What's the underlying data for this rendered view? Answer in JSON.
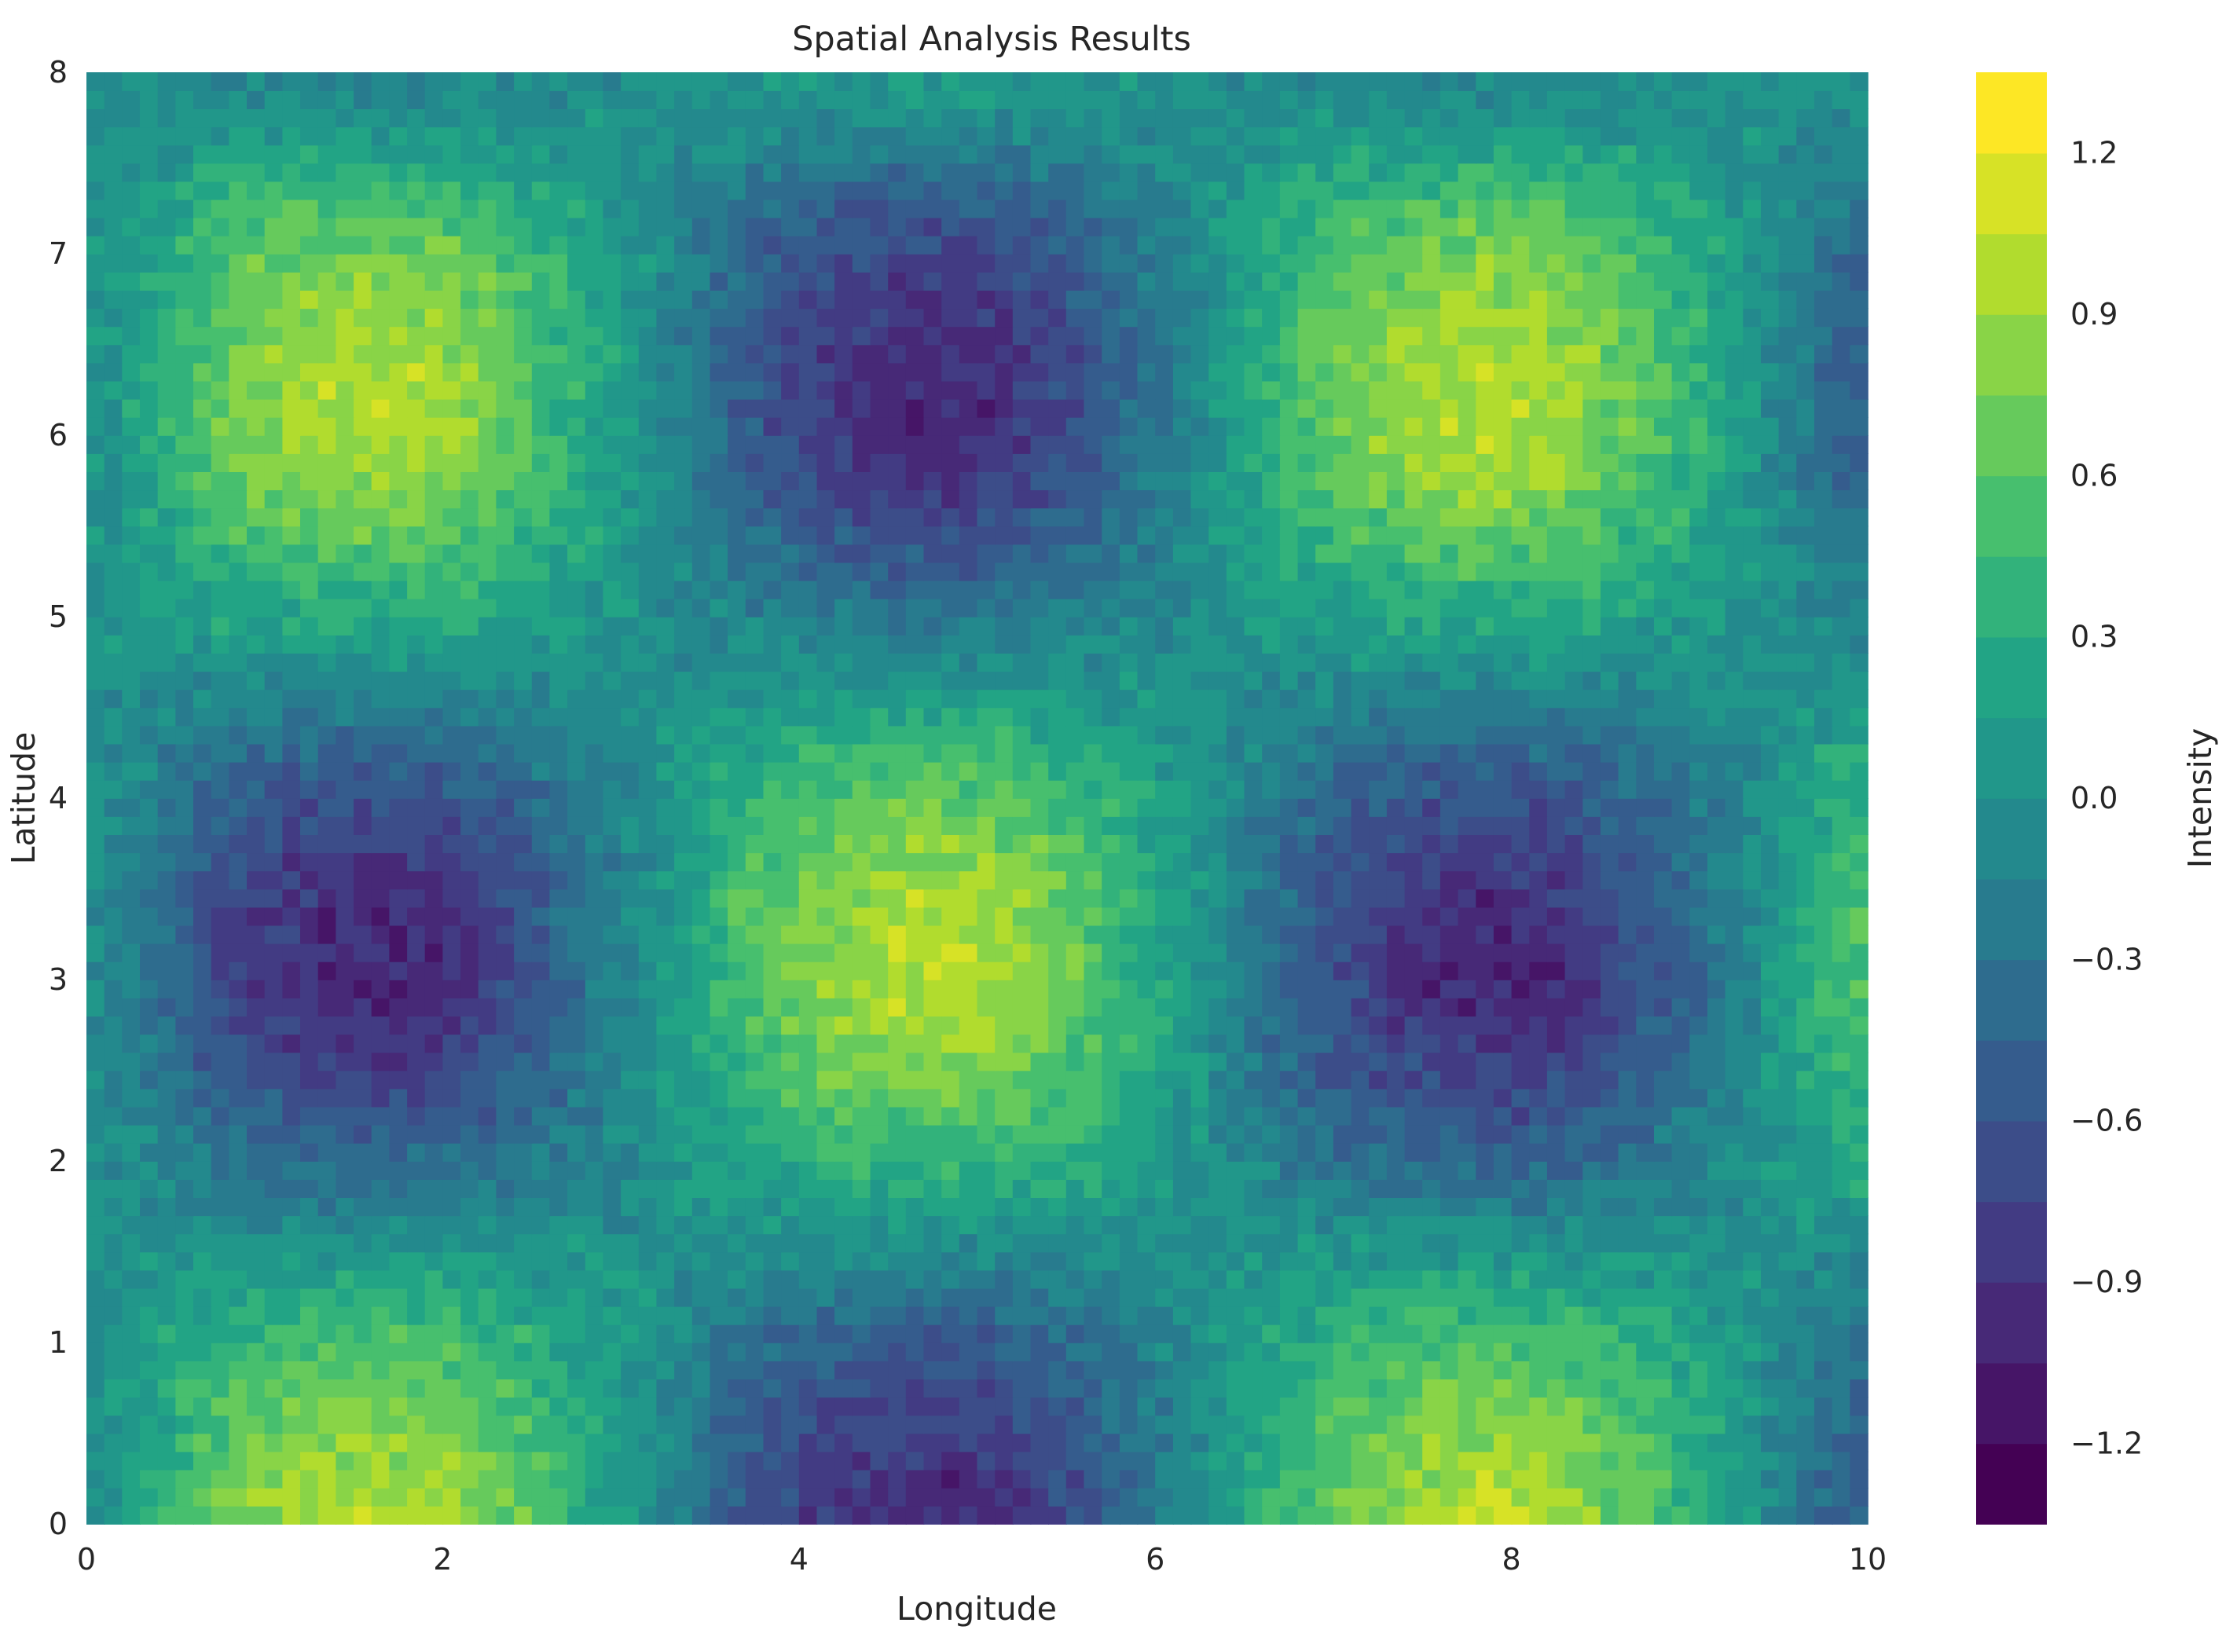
{
  "chart_data": {
    "type": "heatmap",
    "subtype": "filled-contour",
    "title": "Spatial Analysis Results",
    "xlabel": "Longitude",
    "ylabel": "Latitude",
    "xlim": [
      0,
      10
    ],
    "ylim": [
      0,
      8
    ],
    "xticks": [
      "0",
      "2",
      "4",
      "6",
      "8",
      "10"
    ],
    "yticks": [
      "0",
      "1",
      "2",
      "3",
      "4",
      "5",
      "6",
      "7",
      "8"
    ],
    "colormap": "viridis",
    "grid": false,
    "colorbar": {
      "label": "Intensity",
      "range": [
        -1.35,
        1.35
      ],
      "level_step": 0.15,
      "ticks": [
        "−1.2",
        "−0.9",
        "−0.6",
        "−0.3",
        "0.0",
        "0.3",
        "0.6",
        "0.9",
        "1.2"
      ],
      "tick_values": [
        -1.2,
        -0.9,
        -0.6,
        -0.3,
        0.0,
        0.3,
        0.6,
        0.9,
        1.2
      ]
    },
    "grid_x": [
      0,
      1,
      2,
      3,
      4,
      5,
      6,
      7,
      8,
      9,
      10
    ],
    "grid_y": [
      0,
      1,
      2,
      3,
      4,
      5,
      6,
      7,
      8
    ],
    "z": [
      [
        0,
        0.84,
        0.91,
        0.14,
        -0.76,
        -0.96,
        -0.28,
        0.66,
        0.99,
        0.41,
        -0.54
      ],
      [
        0,
        0.45,
        0.49,
        0.08,
        -0.41,
        -0.52,
        -0.15,
        0.36,
        0.53,
        0.22,
        -0.29
      ],
      [
        0,
        -0.35,
        -0.38,
        -0.06,
        0.32,
        0.4,
        0.12,
        -0.28,
        -0.42,
        -0.17,
        0.23
      ],
      [
        0,
        -0.83,
        -0.9,
        -0.14,
        0.75,
        0.95,
        0.28,
        -0.65,
        -0.98,
        -0.41,
        0.53
      ],
      [
        0,
        -0.55,
        -0.59,
        -0.09,
        0.49,
        0.62,
        0.18,
        -0.43,
        -0.64,
        -0.27,
        0.35
      ],
      [
        0,
        0.24,
        0.25,
        0.04,
        -0.21,
        -0.27,
        -0.08,
        0.18,
        0.28,
        0.11,
        -0.15
      ],
      [
        0,
        0.81,
        0.87,
        0.13,
        -0.73,
        -0.92,
        -0.27,
        0.63,
        0.95,
        0.39,
        -0.52
      ],
      [
        0,
        0.63,
        0.68,
        0.11,
        -0.57,
        -0.72,
        -0.21,
        0.5,
        0.74,
        0.31,
        -0.41
      ],
      [
        0,
        -0.13,
        -0.14,
        -0.02,
        0.11,
        0.14,
        0.04,
        -0.1,
        -0.15,
        -0.06,
        0.08
      ]
    ],
    "noise_amplitude": 0.15
  }
}
